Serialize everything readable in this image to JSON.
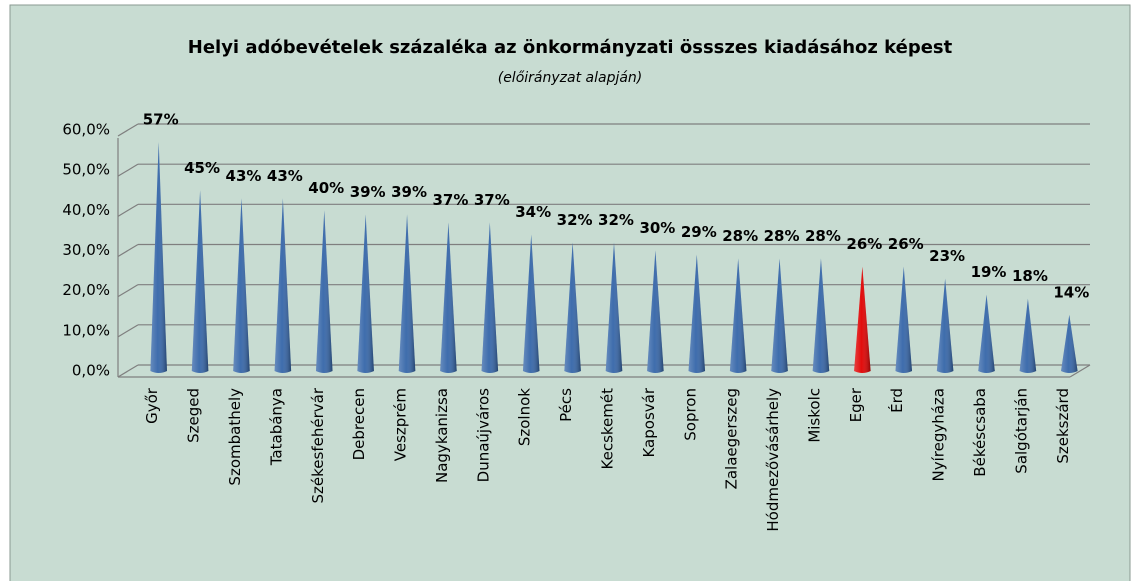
{
  "chart_data": {
    "type": "cone",
    "title": "Helyi adóbevételek százaléka az önkormányzati össszes kiadásához képest",
    "subtitle": "(előirányzat alapján)",
    "categories": [
      "Győr",
      "Szeged",
      "Szombathely",
      "Tatabánya",
      "Székesfehérvár",
      "Debrecen",
      "Veszprém",
      "Nagykanizsa",
      "Dunaújváros",
      "Szolnok",
      "Pécs",
      "Kecskemét",
      "Kaposvár",
      "Sopron",
      "Zalaegerszeg",
      "Hódmezővásárhely",
      "Miskolc",
      "Eger",
      "Érd",
      "Nyíregyháza",
      "Békéscsaba",
      "Salgótarján",
      "Szekszárd"
    ],
    "values": [
      57,
      45,
      43,
      43,
      40,
      39,
      39,
      37,
      37,
      34,
      32,
      32,
      30,
      29,
      28,
      28,
      28,
      26,
      26,
      23,
      19,
      18,
      14
    ],
    "value_labels": [
      "57%",
      "45%",
      "43%",
      "43%",
      "40%",
      "39%",
      "39%",
      "37%",
      "37%",
      "34%",
      "32%",
      "32%",
      "30%",
      "29%",
      "28%",
      "28%",
      "28%",
      "26%",
      "26%",
      "23%",
      "19%",
      "18%",
      "14%"
    ],
    "colors": [
      "#3465a8",
      "#3465a8",
      "#3465a8",
      "#3465a8",
      "#3465a8",
      "#3465a8",
      "#3465a8",
      "#3465a8",
      "#3465a8",
      "#3465a8",
      "#3465a8",
      "#3465a8",
      "#3465a8",
      "#3465a8",
      "#3465a8",
      "#3465a8",
      "#3465a8",
      "#e00000",
      "#3465a8",
      "#3465a8",
      "#3465a8",
      "#3465a8",
      "#3465a8"
    ],
    "ylim": [
      0,
      60
    ],
    "yticks": [
      {
        "value": 0,
        "label": "0,0%"
      },
      {
        "value": 10,
        "label": "10,0%"
      },
      {
        "value": 20,
        "label": "20,0%"
      },
      {
        "value": 30,
        "label": "30,0%"
      },
      {
        "value": 40,
        "label": "40,0%"
      },
      {
        "value": 50,
        "label": "50,0%"
      },
      {
        "value": 60,
        "label": "60,0%"
      }
    ],
    "grid": true
  }
}
